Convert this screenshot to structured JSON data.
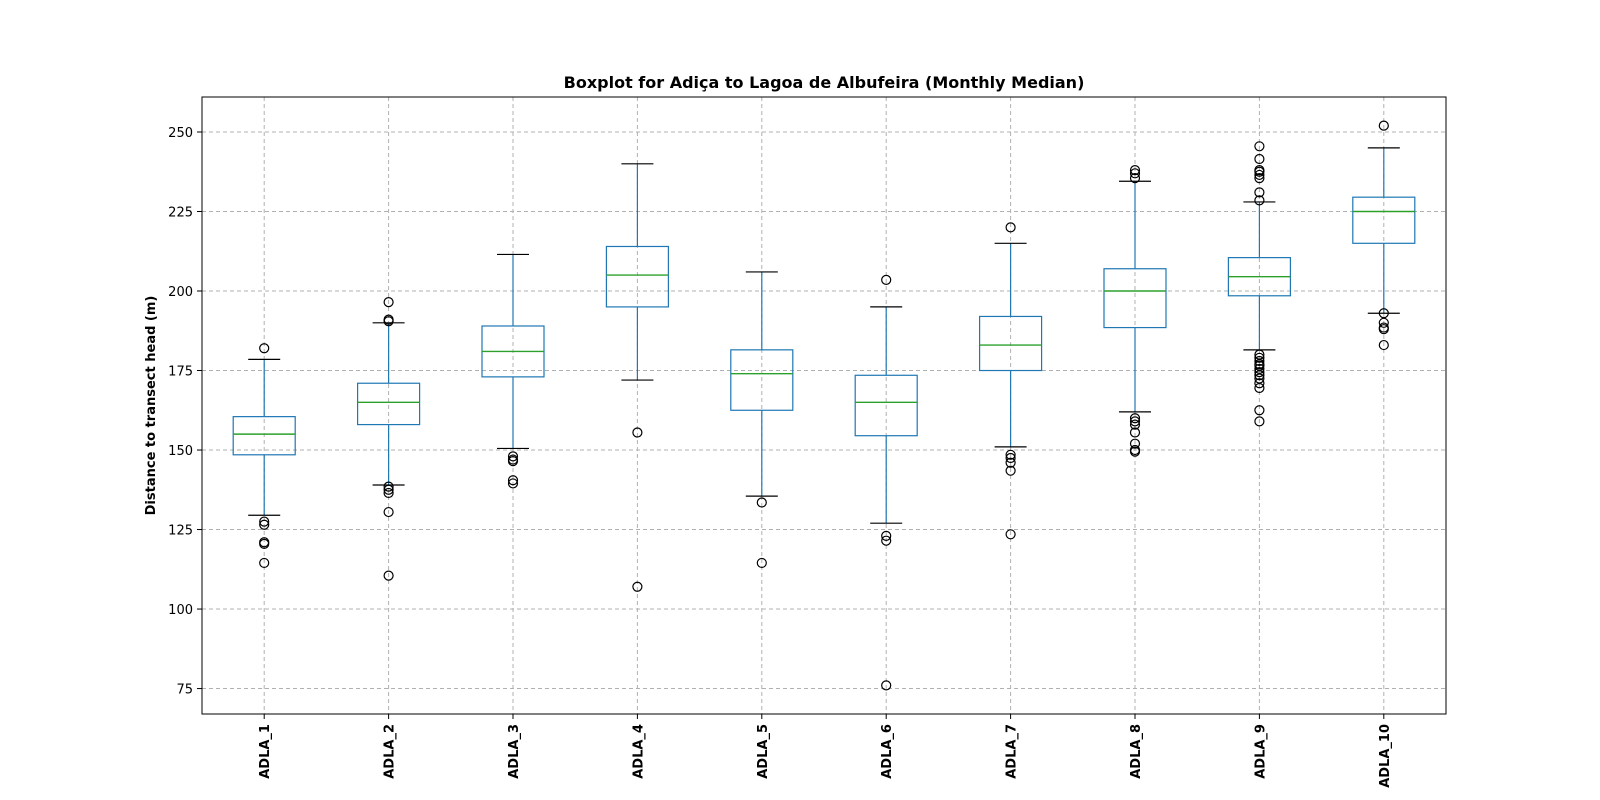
{
  "chart_data": {
    "type": "box",
    "title": "Boxplot for Adiça to Lagoa de Albufeira (Monthly Median)",
    "xlabel": "",
    "ylabel": "Distance to transect head (m)",
    "ylim": [
      67,
      261
    ],
    "yticks": [
      75,
      100,
      125,
      150,
      175,
      200,
      225,
      250
    ],
    "grid": true,
    "categories": [
      "ADLA_1",
      "ADLA_2",
      "ADLA_3",
      "ADLA_4",
      "ADLA_5",
      "ADLA_6",
      "ADLA_7",
      "ADLA_8",
      "ADLA_9",
      "ADLA_10"
    ],
    "boxes": [
      {
        "whislo": 129.5,
        "q1": 148.5,
        "med": 155.0,
        "q3": 160.5,
        "whishi": 178.5,
        "fliers": [
          182,
          127.5,
          126.5,
          121,
          120.5,
          114.5
        ]
      },
      {
        "whislo": 139.0,
        "q1": 158.0,
        "med": 165.0,
        "q3": 171.0,
        "whishi": 190.0,
        "fliers": [
          196.5,
          191,
          190.5,
          138.5,
          137.5,
          136.5,
          130.5,
          110.5
        ]
      },
      {
        "whislo": 150.5,
        "q1": 173.0,
        "med": 181.0,
        "q3": 189.0,
        "whishi": 211.5,
        "fliers": [
          148,
          147,
          146.5,
          140.5,
          139.5
        ]
      },
      {
        "whislo": 172.0,
        "q1": 195.0,
        "med": 205.0,
        "q3": 214.0,
        "whishi": 240.0,
        "fliers": [
          155.5,
          107
        ]
      },
      {
        "whislo": 135.5,
        "q1": 162.5,
        "med": 174.0,
        "q3": 181.5,
        "whishi": 206.0,
        "fliers": [
          133.5,
          114.5
        ]
      },
      {
        "whislo": 127.0,
        "q1": 154.5,
        "med": 165.0,
        "q3": 173.5,
        "whishi": 195.0,
        "fliers": [
          203.5,
          123,
          121.5,
          76
        ]
      },
      {
        "whislo": 151.0,
        "q1": 175.0,
        "med": 183.0,
        "q3": 192.0,
        "whishi": 215.0,
        "fliers": [
          220,
          148.5,
          147.5,
          146,
          143.5,
          123.5
        ]
      },
      {
        "whislo": 162.0,
        "q1": 188.5,
        "med": 200.0,
        "q3": 207.0,
        "whishi": 234.5,
        "fliers": [
          238,
          237,
          235.5,
          160,
          159,
          158,
          155.5,
          152,
          150,
          149.5
        ]
      },
      {
        "whislo": 181.5,
        "q1": 198.5,
        "med": 204.5,
        "q3": 210.5,
        "whishi": 228.0,
        "fliers": [
          245.5,
          241.5,
          238,
          237.5,
          236.5,
          235.5,
          231,
          228.5,
          180,
          179,
          178,
          177,
          176.5,
          175.5,
          174.5,
          173.5,
          172.5,
          171,
          169.5,
          162.5,
          159
        ]
      },
      {
        "whislo": 193.0,
        "q1": 215.0,
        "med": 225.0,
        "q3": 229.5,
        "whishi": 245.0,
        "fliers": [
          252,
          193,
          190,
          188.5,
          188,
          183
        ]
      }
    ]
  }
}
